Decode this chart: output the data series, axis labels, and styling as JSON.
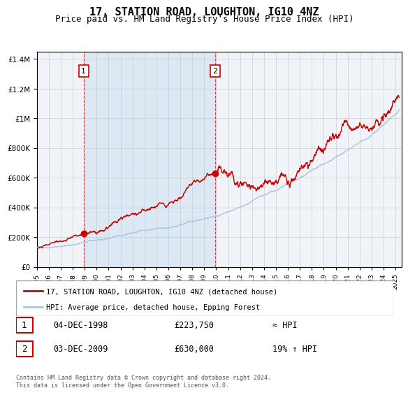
{
  "title": "17, STATION ROAD, LOUGHTON, IG10 4NZ",
  "subtitle": "Price paid vs. HM Land Registry's House Price Index (HPI)",
  "legend_line1": "17, STATION ROAD, LOUGHTON, IG10 4NZ (detached house)",
  "legend_line2": "HPI: Average price, detached house, Epping Forest",
  "footnote": "Contains HM Land Registry data © Crown copyright and database right 2024.\nThis data is licensed under the Open Government Licence v3.0.",
  "annotation1_label": "1",
  "annotation1_date": "04-DEC-1998",
  "annotation1_price": "£223,750",
  "annotation1_hpi": "≈ HPI",
  "annotation2_label": "2",
  "annotation2_date": "03-DEC-2009",
  "annotation2_price": "£630,000",
  "annotation2_hpi": "19% ↑ HPI",
  "hpi_line_color": "#aac4dd",
  "price_line_color": "#cc0000",
  "marker_color": "#cc0000",
  "background_color": "#ffffff",
  "plot_bg_color": "#f0f4f8",
  "shade_color": "#dce8f4",
  "grid_color": "#cccccc",
  "title_fontsize": 11,
  "subtitle_fontsize": 9,
  "ylim": [
    0,
    1450000
  ],
  "xlim_start": 1995.0,
  "xlim_end": 2025.5,
  "purchase1_x": 1998.92,
  "purchase1_y": 223750,
  "purchase2_x": 2009.92,
  "purchase2_y": 630000,
  "vline1_x": 1998.92,
  "vline2_x": 2009.92,
  "shade_x1": 1998.92,
  "shade_x2": 2009.92
}
